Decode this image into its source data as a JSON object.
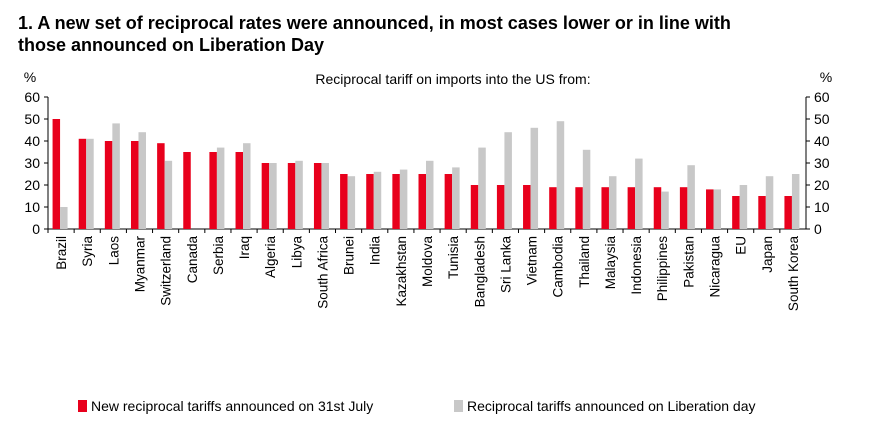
{
  "title_line1": "1. A new set of reciprocal rates were announced, in most cases lower or in line with",
  "title_line2": "those announced on Liberation Day",
  "chart_data": {
    "type": "bar",
    "subtitle": "Reciprocal tariff on imports into the US from:",
    "y_unit_left": "%",
    "y_unit_right": "%",
    "ylim": [
      0,
      60
    ],
    "yticks": [
      0,
      10,
      20,
      30,
      40,
      50,
      60
    ],
    "grid": false,
    "legend_position": "bottom",
    "categories": [
      "Brazil",
      "Syria",
      "Laos",
      "Myanmar",
      "Switzerland",
      "Canada",
      "Serbia",
      "Iraq",
      "Algeria",
      "Libya",
      "South Africa",
      "Brunei",
      "India",
      "Kazakhstan",
      "Moldova",
      "Tunisia",
      "Bangladesh",
      "Sri Lanka",
      "Vietnam",
      "Cambodia",
      "Thailand",
      "Malaysia",
      "Indonesia",
      "Philippines",
      "Pakistan",
      "Nicaragua",
      "EU",
      "Japan",
      "South Korea"
    ],
    "series": [
      {
        "name": "New reciprocal tariffs announced on 31st July",
        "color": "#e8001c",
        "values": [
          50,
          41,
          40,
          40,
          39,
          35,
          35,
          35,
          30,
          30,
          30,
          25,
          25,
          25,
          25,
          25,
          20,
          20,
          20,
          19,
          19,
          19,
          19,
          19,
          19,
          18,
          15,
          15,
          15
        ]
      },
      {
        "name": "Reciprocal tariffs announced on Liberation day",
        "color": "#c8c8c8",
        "values": [
          10,
          41,
          48,
          44,
          31,
          null,
          37,
          39,
          30,
          31,
          30,
          24,
          26,
          27,
          31,
          28,
          37,
          44,
          46,
          49,
          36,
          24,
          32,
          17,
          29,
          18,
          20,
          24,
          25
        ]
      }
    ]
  }
}
